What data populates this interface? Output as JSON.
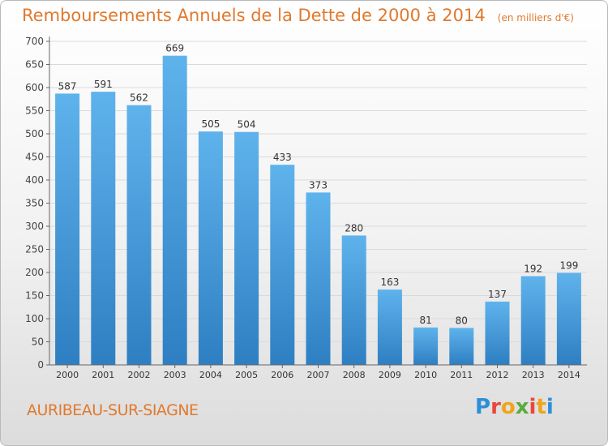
{
  "chart_data": {
    "type": "bar",
    "title": "Remboursements Annuels de la Dette de 2000 à 2014",
    "subtitle": "(en milliers d'€)",
    "categories": [
      "2000",
      "2001",
      "2002",
      "2003",
      "2004",
      "2005",
      "2006",
      "2007",
      "2008",
      "2009",
      "2010",
      "2011",
      "2012",
      "2013",
      "2014"
    ],
    "values": [
      587,
      591,
      562,
      669,
      505,
      504,
      433,
      373,
      280,
      163,
      81,
      80,
      137,
      192,
      199
    ],
    "ylim": [
      0,
      700
    ],
    "yticks": [
      0,
      50,
      100,
      150,
      200,
      250,
      300,
      350,
      400,
      450,
      500,
      550,
      600,
      650,
      700
    ],
    "grid": true,
    "bar_color": "#4a9fe0",
    "grid_color": "#dadada"
  },
  "city": "AURIBEAU-SUR-SIAGNE",
  "logo": {
    "letters": [
      "P",
      "r",
      "o",
      "x",
      "i",
      "t",
      "i"
    ],
    "colors": [
      "#2c8fd6",
      "#e8483b",
      "#f0a41a",
      "#5aab3c",
      "#e8483b",
      "#f0a41a",
      "#2c8fd6"
    ]
  }
}
